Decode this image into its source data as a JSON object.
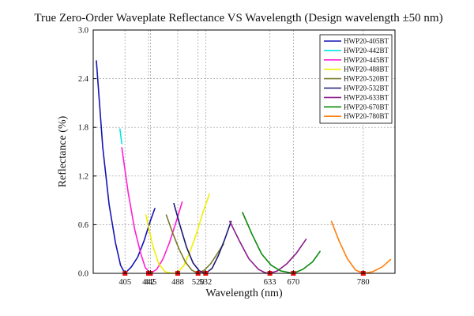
{
  "chart_data": {
    "type": "line",
    "title": "True Zero-Order Waveplate Reflectance VS Wavelength (Design wavelength ±50 nm)",
    "xlabel": "Wavelength (nm)",
    "ylabel": "Reflectance (%)",
    "xlim": [
      355,
      830
    ],
    "ylim": [
      0,
      3.0
    ],
    "y_ticks": [
      0.0,
      0.6,
      1.2,
      1.8,
      2.4,
      3.0
    ],
    "y_tick_labels": [
      "0.0",
      "0.6",
      "1.2",
      "1.8",
      "2.4",
      "3.0"
    ],
    "x_ticks": [
      405,
      442,
      445,
      488,
      520,
      532,
      633,
      670,
      780
    ],
    "x_tick_labels": [
      "405",
      "442",
      "445",
      "488",
      "520",
      "532",
      "633",
      "670",
      "780"
    ],
    "grid": true,
    "legend_position": "top-right",
    "series": [
      {
        "name": "HWP20-405BT",
        "color": "#1414b4",
        "x": [
          360,
          370,
          380,
          390,
          398,
          405,
          415,
          425,
          435,
          445,
          452
        ],
        "y": [
          2.62,
          1.55,
          0.85,
          0.38,
          0.1,
          0.0,
          0.08,
          0.2,
          0.4,
          0.65,
          0.8
        ]
      },
      {
        "name": "HWP20-442BT",
        "color": "#00e5e5",
        "x": [
          397,
          400
        ],
        "y": [
          1.78,
          1.6
        ]
      },
      {
        "name": "HWP20-445BT",
        "color": "#ff1fd2",
        "x": [
          400,
          410,
          420,
          430,
          437,
          445,
          455,
          465,
          475,
          485,
          495
        ],
        "y": [
          1.55,
          1.0,
          0.55,
          0.24,
          0.07,
          0.0,
          0.05,
          0.18,
          0.38,
          0.62,
          0.88
        ]
      },
      {
        "name": "HWP20-488BT",
        "color": "#f0f000",
        "x": [
          438,
          448,
          458,
          468,
          478,
          488,
          498,
          508,
          518,
          528,
          538
        ],
        "y": [
          0.72,
          0.36,
          0.12,
          0.02,
          0.0,
          0.01,
          0.1,
          0.28,
          0.5,
          0.76,
          0.98
        ]
      },
      {
        "name": "HWP20-520BT",
        "color": "#7a7a2a",
        "x": [
          470,
          480,
          490,
          500,
          510,
          520,
          530,
          540,
          550,
          560
        ],
        "y": [
          0.72,
          0.5,
          0.3,
          0.14,
          0.04,
          0.0,
          0.04,
          0.12,
          0.24,
          0.36
        ]
      },
      {
        "name": "HWP20-532BT",
        "color": "#1a1a7a",
        "x": [
          482,
          492,
          502,
          512,
          522,
          532,
          542,
          552,
          562,
          572
        ],
        "y": [
          0.86,
          0.58,
          0.32,
          0.13,
          0.03,
          0.0,
          0.06,
          0.22,
          0.42,
          0.64
        ]
      },
      {
        "name": "HWP20-633BT",
        "color": "#8b1a8b",
        "x": [
          570,
          585,
          600,
          615,
          625,
          633,
          645,
          660,
          675,
          690
        ],
        "y": [
          0.64,
          0.4,
          0.18,
          0.05,
          0.01,
          0.0,
          0.03,
          0.12,
          0.25,
          0.42
        ]
      },
      {
        "name": "HWP20-670BT",
        "color": "#0a8a0a",
        "x": [
          590,
          605,
          620,
          635,
          650,
          670,
          685,
          700,
          712
        ],
        "y": [
          0.75,
          0.48,
          0.24,
          0.1,
          0.03,
          0.0,
          0.05,
          0.14,
          0.27
        ]
      },
      {
        "name": "HWP20-780BT",
        "color": "#ff7f0e",
        "x": [
          730,
          742,
          755,
          768,
          780,
          795,
          810,
          823
        ],
        "y": [
          0.64,
          0.4,
          0.18,
          0.04,
          0.0,
          0.02,
          0.08,
          0.17
        ]
      }
    ]
  }
}
